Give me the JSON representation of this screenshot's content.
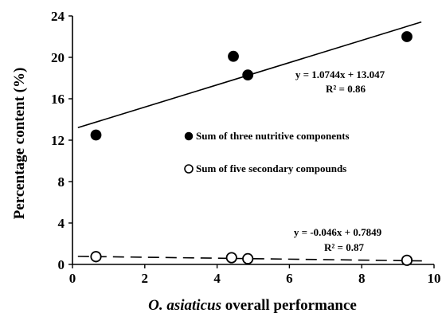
{
  "chart_data": {
    "type": "scatter",
    "xlabel_italic": "O. asiaticus",
    "xlabel_rest": " overall performance",
    "ylabel": "Percentage content  (%)",
    "xlim": [
      0,
      10
    ],
    "ylim": [
      0,
      24
    ],
    "xticks": [
      0,
      2,
      4,
      6,
      8,
      10
    ],
    "yticks": [
      0,
      4,
      8,
      12,
      16,
      20,
      24
    ],
    "legend_position": "center-right",
    "series": [
      {
        "name": "Sum of three nutritive components",
        "marker": "filled-circle",
        "color": "#000000",
        "points": [
          {
            "x": 0.65,
            "y": 12.5
          },
          {
            "x": 4.45,
            "y": 20.1
          },
          {
            "x": 4.85,
            "y": 18.3
          },
          {
            "x": 9.25,
            "y": 22.0
          }
        ],
        "trendline": {
          "slope": 1.0744,
          "intercept": 13.047,
          "x_range": [
            0.15,
            9.65
          ],
          "style": "solid",
          "equation": "y = 1.0744x + 13.047",
          "r2": "R² = 0.86"
        }
      },
      {
        "name": "Sum of five secondary compounds",
        "marker": "open-circle",
        "color": "#000000",
        "points": [
          {
            "x": 0.65,
            "y": 0.75
          },
          {
            "x": 4.4,
            "y": 0.65
          },
          {
            "x": 4.85,
            "y": 0.55
          },
          {
            "x": 9.25,
            "y": 0.4
          }
        ],
        "trendline": {
          "slope": -0.046,
          "intercept": 0.7849,
          "x_range": [
            0.15,
            9.75
          ],
          "style": "dashed",
          "equation": "y = -0.046x + 0.7849",
          "r2": "R² = 0.87"
        }
      }
    ]
  }
}
